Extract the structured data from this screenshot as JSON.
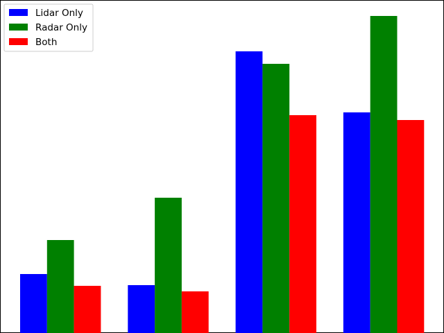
{
  "chart_data": {
    "type": "bar",
    "categories": [
      "",
      "",
      "",
      ""
    ],
    "series": [
      {
        "name": "Lidar Only",
        "color": "#0000ff",
        "values": [
          85,
          69,
          406,
          318
        ]
      },
      {
        "name": "Radar Only",
        "color": "#008000",
        "values": [
          134,
          195,
          388,
          457
        ]
      },
      {
        "name": "Both",
        "color": "#ff0000",
        "values": [
          68,
          60,
          314,
          307
        ]
      }
    ],
    "title": "",
    "xlabel": "",
    "ylabel": "",
    "ylim": [
      0,
      480
    ],
    "grid": false,
    "legend": "top-left"
  }
}
